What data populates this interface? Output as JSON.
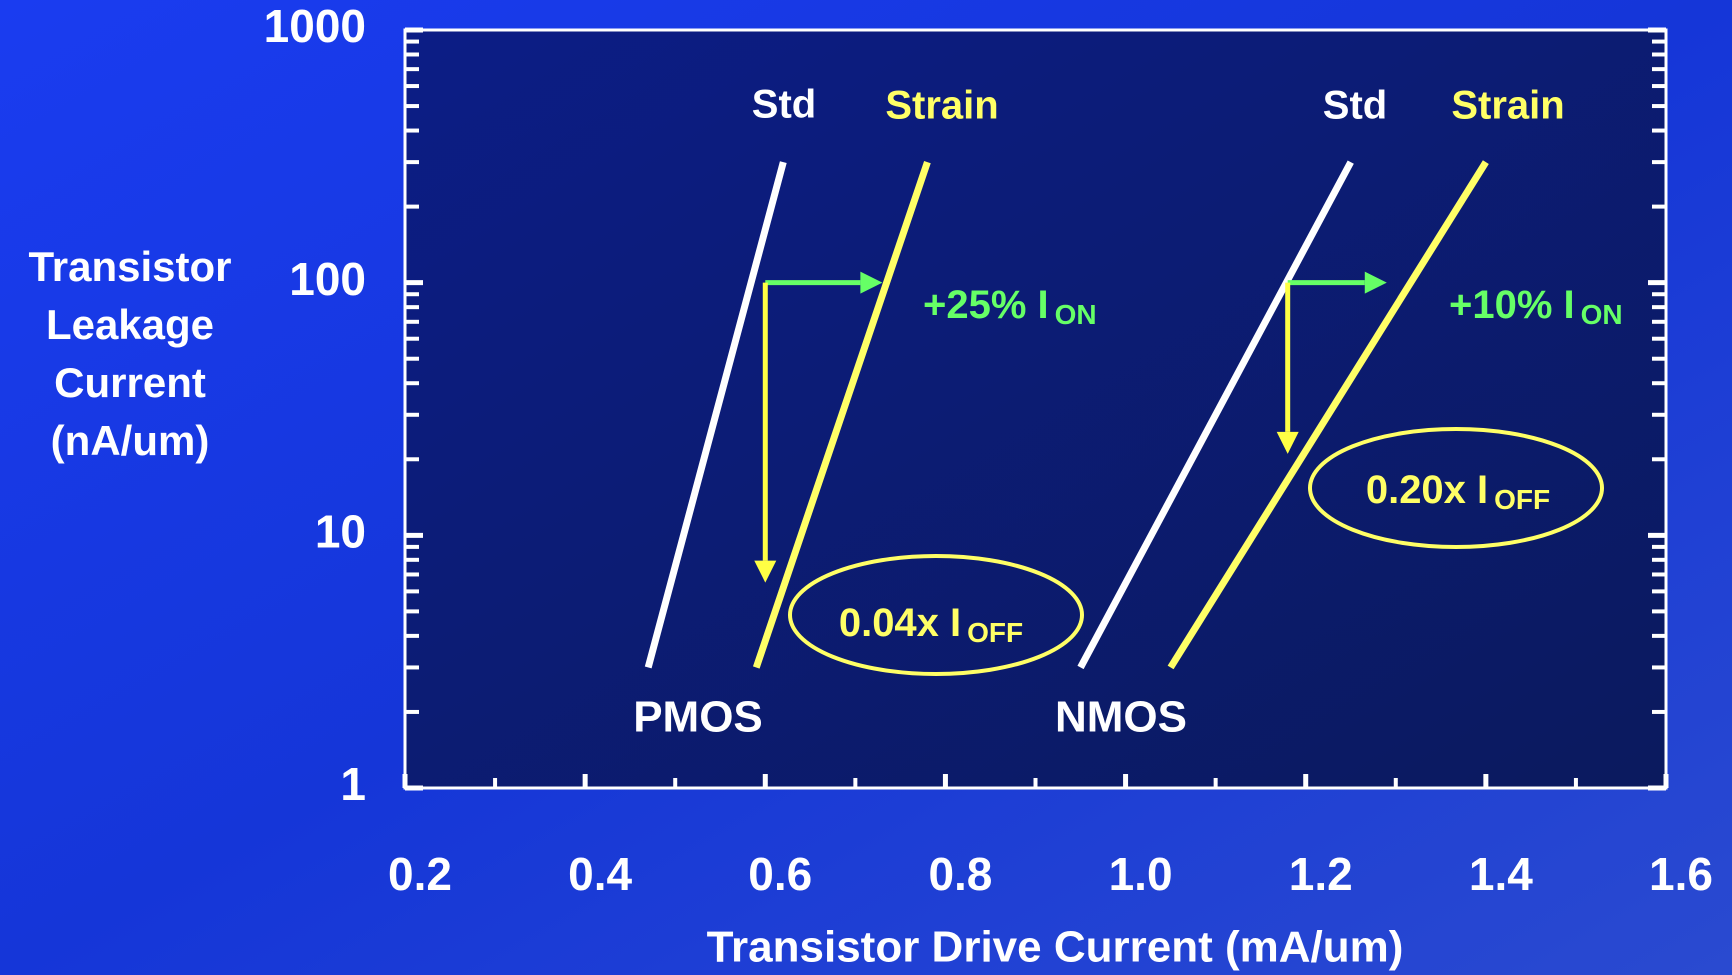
{
  "chart_data": {
    "type": "line",
    "x_label": "Transistor Drive Current (mA/um)",
    "y_label": [
      "Transistor",
      "Leakage",
      "Current",
      "(nA/um)"
    ],
    "log_y": true,
    "xlim": [
      0.2,
      1.6
    ],
    "xticks": [
      0.2,
      0.4,
      0.6,
      0.8,
      {
        "value": 1,
        "label": "1.0"
      },
      1.2,
      1.4,
      1.6
    ],
    "x_minor_ticks": [
      0.3,
      0.5,
      0.7,
      0.9,
      1.1,
      1.3,
      1.5
    ],
    "ylim": [
      1,
      1000
    ],
    "yticks": [
      1,
      10,
      100,
      1000
    ],
    "y_minor_ticks": [
      2,
      3,
      4,
      5,
      6,
      7,
      8,
      9,
      20,
      30,
      40,
      50,
      60,
      70,
      80,
      90,
      200,
      300,
      400,
      500,
      600,
      700,
      800,
      900
    ],
    "groups": [
      "PMOS",
      "NMOS"
    ],
    "series": [
      {
        "name": "Std",
        "group": "PMOS",
        "color": "#ffffff",
        "x": [
          0.47,
          0.62
        ],
        "values": [
          3,
          300
        ]
      },
      {
        "name": "Strain",
        "group": "PMOS",
        "color": "#ffff66",
        "x": [
          0.59,
          0.78
        ],
        "values": [
          3,
          300
        ]
      },
      {
        "name": "Std",
        "group": "NMOS",
        "color": "#ffffff",
        "x": [
          0.95,
          1.25
        ],
        "values": [
          3,
          300
        ]
      },
      {
        "name": "Strain",
        "group": "NMOS",
        "color": "#ffff66",
        "x": [
          1.05,
          1.4
        ],
        "values": [
          3,
          300
        ]
      }
    ],
    "arrows": [
      {
        "color": "#66ff66",
        "x": [
          0.6,
          0.73
        ],
        "values": [
          100,
          100
        ]
      },
      {
        "color": "#ffff44",
        "x": [
          0.6,
          0.6
        ],
        "values": [
          100,
          6.5
        ]
      },
      {
        "color": "#66ff66",
        "x": [
          1.18,
          1.29
        ],
        "values": [
          100,
          100
        ]
      },
      {
        "color": "#ffff44",
        "x": [
          1.18,
          1.18
        ],
        "values": [
          100,
          21
        ]
      }
    ],
    "annotations": [
      {
        "text": "+25% I",
        "subscript": "ON"
      },
      {
        "text": "0.04x I",
        "subscript": "OFF"
      },
      {
        "text": "+10% I",
        "subscript": "ON"
      },
      {
        "text": "0.20x I",
        "subscript": "OFF"
      }
    ]
  }
}
